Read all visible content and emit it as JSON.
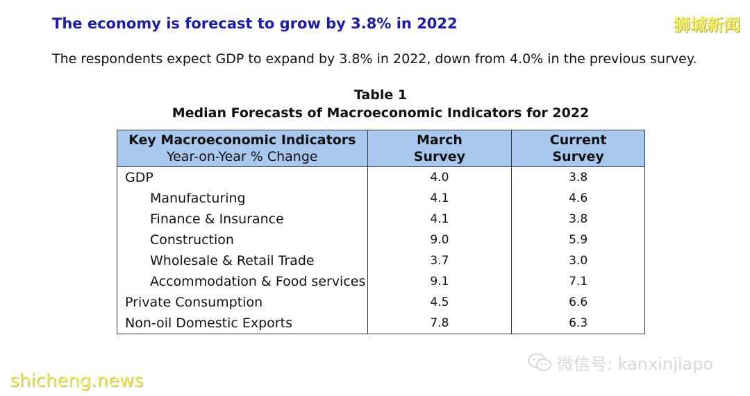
{
  "heading": "The economy is forecast to grow by 3.8% in 2022",
  "intro": "The respondents expect GDP to expand by 3.8% in 2022, down from 4.0% in the previous survey.",
  "table": {
    "title_line1": "Table 1",
    "title_line2": "Median Forecasts of Macroeconomic Indicators for 2022",
    "headers": {
      "col1_main": "Key Macroeconomic Indicators",
      "col1_sub": "Year-on-Year % Change",
      "col2_line1": "March",
      "col2_line2": "Survey",
      "col3_line1": "Current",
      "col3_line2": "Survey"
    },
    "rows": [
      {
        "label": "GDP",
        "march": "4.0",
        "current": "3.8"
      },
      {
        "label": "Manufacturing",
        "march": "4.1",
        "current": "4.6"
      },
      {
        "label": "Finance & Insurance",
        "march": "4.1",
        "current": "3.8"
      },
      {
        "label": "Construction",
        "march": "9.0",
        "current": "5.9"
      },
      {
        "label": "Wholesale & Retail Trade",
        "march": "3.7",
        "current": "3.0"
      },
      {
        "label": "Accommodation & Food services",
        "march": "9.1",
        "current": "7.1"
      },
      {
        "label": "Private Consumption",
        "march": "4.5",
        "current": "6.6"
      },
      {
        "label": "Non-oil Domestic Exports",
        "march": "7.8",
        "current": "6.3"
      }
    ]
  },
  "watermarks": {
    "top_right": "狮城新闻",
    "bottom_left": "shicheng.news",
    "wechat": "微信号: kanxinjiapo"
  },
  "colors": {
    "heading": "#1a1ab4",
    "header_bg": "#a9c8ee",
    "watermark_yellow": "#f7f250"
  }
}
